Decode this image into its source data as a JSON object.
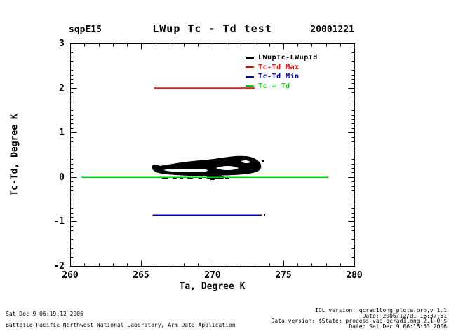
{
  "header": {
    "site": "sqpE15",
    "title": "LWup Tc - Td test",
    "date": "20001221"
  },
  "chart_data": {
    "type": "scatter",
    "title": "LWup Tc - Td test",
    "site": "sqpE15",
    "date": "20001221",
    "xlabel": "Ta, Degree K",
    "ylabel": "Tc-Td, Degree K",
    "xlim": [
      260,
      280
    ],
    "ylim": [
      -2,
      3
    ],
    "x_ticks": [
      260,
      265,
      270,
      275,
      280
    ],
    "y_ticks": [
      3,
      2,
      1,
      0,
      -1,
      -2
    ],
    "x_tick_labels": [
      "260",
      "265",
      "270",
      "275",
      "280"
    ],
    "y_tick_labels": [
      "3",
      "2",
      "1",
      "0",
      "-1",
      "-2"
    ],
    "x_minor_step": 1,
    "y_minor_step": 0.1,
    "grid": false,
    "legend_position": "top-right-inside",
    "legend": [
      {
        "label": "LWupTc-LWupTd",
        "color": "#000000"
      },
      {
        "label": "Tc-Td Max",
        "color": "#ee0000"
      },
      {
        "label": "Tc-Td Min",
        "color": "#0000bb"
      },
      {
        "label": "Tc = Td",
        "color": "#00d400"
      }
    ],
    "series": [
      {
        "name": "LWupTc-LWupTd",
        "kind": "scatter-cluster",
        "color": "#000000",
        "x_range": [
          265.8,
          273.5
        ],
        "y_range": [
          -0.05,
          0.45
        ]
      },
      {
        "name": "Tc-Td Max",
        "kind": "hline",
        "color": "#ee0000",
        "y": 2.0,
        "x_span": [
          265.9,
          273.0
        ]
      },
      {
        "name": "Tc-Td Min",
        "kind": "hline",
        "color": "#0000bb",
        "y": -0.85,
        "x_span": [
          265.8,
          273.5
        ]
      },
      {
        "name": "Tc = Td",
        "kind": "hline",
        "color": "#00d400",
        "y": 0.0,
        "x_span": [
          260.8,
          278.2
        ]
      }
    ]
  },
  "footer": {
    "left_line1": "Sat Dec  9 06:19:12 2006",
    "left_line2": "Battelle Pacific Northwest National Laboratory, Arm Data Application",
    "right_line1": "IDL version: qcrad1long_plots.pro,v 1.1",
    "right_line2": "Date: 2006/12/01 16:37:51",
    "right_line3": "Data version: $State: process-vap-qcrad1long-2.1-0 $",
    "right_line4": "Date: Sat Dec  9 06:18:53 2006"
  }
}
